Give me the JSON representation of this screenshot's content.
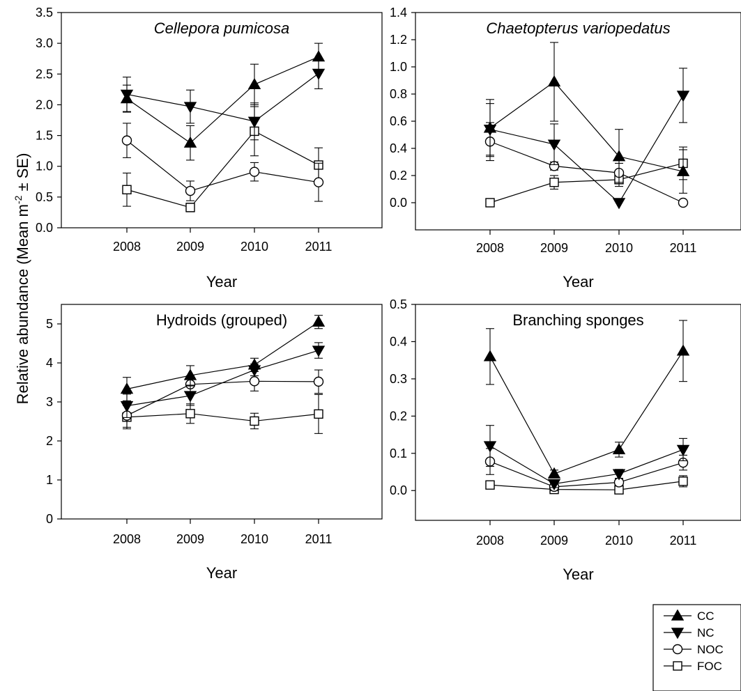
{
  "figure": {
    "shared_ylabel": "Relative abundance (Mean m",
    "shared_ylabel_sup": "-2",
    "shared_ylabel_tail": " ± SE)"
  },
  "legend": {
    "entries": [
      {
        "name": "CC",
        "marker": "triangle-up",
        "fill": "#000000"
      },
      {
        "name": "NC",
        "marker": "triangle-down",
        "fill": "#000000"
      },
      {
        "name": "NOC",
        "marker": "circle",
        "fill": "#ffffff"
      },
      {
        "name": "FOC",
        "marker": "square",
        "fill": "#ffffff"
      }
    ]
  },
  "chart_data": [
    {
      "type": "line",
      "title": "Cellepora pumicosa",
      "title_italic": true,
      "xlabel": "Year",
      "ylabel": "",
      "categories": [
        "2008",
        "2009",
        "2010",
        "2011"
      ],
      "ylim": [
        0,
        3.5
      ],
      "yticks": [
        "0.0",
        "0.5",
        "1.0",
        "1.5",
        "2.0",
        "2.5",
        "3.0",
        "3.5"
      ],
      "grid": false,
      "series": [
        {
          "name": "CC",
          "values": [
            2.1,
            1.38,
            2.33,
            2.78
          ],
          "se": [
            0.22,
            0.28,
            0.33,
            0.22
          ]
        },
        {
          "name": "NC",
          "values": [
            2.17,
            1.97,
            1.73,
            2.51
          ],
          "se": [
            0.28,
            0.27,
            0.3,
            0.25
          ]
        },
        {
          "name": "NOC",
          "values": [
            1.42,
            0.6,
            0.91,
            0.74
          ],
          "se": [
            0.28,
            0.16,
            0.15,
            0.31
          ]
        },
        {
          "name": "FOC",
          "values": [
            0.62,
            0.33,
            1.57,
            1.02
          ],
          "se": [
            0.27,
            0.07,
            0.4,
            0.28
          ]
        }
      ]
    },
    {
      "type": "line",
      "title": "Chaetopterus variopedatus",
      "title_italic": true,
      "xlabel": "Year",
      "ylabel": "",
      "categories": [
        "2008",
        "2009",
        "2010",
        "2011"
      ],
      "ylim": [
        -0.2,
        1.4
      ],
      "yticks": [
        "0.0",
        "0.2",
        "0.4",
        "0.6",
        "0.8",
        "1.0",
        "1.2",
        "1.4"
      ],
      "grid": false,
      "series": [
        {
          "name": "CC",
          "values": [
            0.55,
            0.89,
            0.34,
            0.23
          ],
          "se": [
            0.21,
            0.29,
            0.2,
            0.16
          ]
        },
        {
          "name": "NC",
          "values": [
            0.54,
            0.43,
            0.0,
            0.79
          ],
          "se": [
            0.19,
            0.15,
            0.0,
            0.2
          ]
        },
        {
          "name": "NOC",
          "values": [
            0.45,
            0.27,
            0.22,
            0.0
          ],
          "se": [
            0.14,
            0.03,
            0.07,
            0.0
          ]
        },
        {
          "name": "FOC",
          "values": [
            0.0,
            0.15,
            0.17,
            0.29
          ],
          "se": [
            0.0,
            0.05,
            0.05,
            0.12
          ]
        }
      ]
    },
    {
      "type": "line",
      "title": "Hydroids (grouped)",
      "title_italic": false,
      "xlabel": "Year",
      "ylabel": "",
      "categories": [
        "2008",
        "2009",
        "2010",
        "2011"
      ],
      "ylim": [
        0,
        5.5
      ],
      "yticks": [
        "0",
        "1",
        "2",
        "3",
        "4",
        "5"
      ],
      "grid": false,
      "series": [
        {
          "name": "CC",
          "values": [
            3.33,
            3.68,
            3.95,
            5.05
          ],
          "se": [
            0.3,
            0.25,
            0.17,
            0.17
          ]
        },
        {
          "name": "NC",
          "values": [
            2.9,
            3.16,
            3.82,
            4.32
          ],
          "se": [
            0.3,
            0.25,
            0.15,
            0.2
          ]
        },
        {
          "name": "NOC",
          "values": [
            2.65,
            3.45,
            3.53,
            3.52
          ],
          "se": [
            0.3,
            0.22,
            0.25,
            0.3
          ]
        },
        {
          "name": "FOC",
          "values": [
            2.61,
            2.7,
            2.51,
            2.69
          ],
          "se": [
            0.3,
            0.25,
            0.2,
            0.5
          ]
        }
      ]
    },
    {
      "type": "line",
      "title": "Branching sponges",
      "title_italic": false,
      "xlabel": "Year",
      "ylabel": "",
      "categories": [
        "2008",
        "2009",
        "2010",
        "2011"
      ],
      "ylim": [
        -0.08,
        0.5
      ],
      "yticks": [
        "0.0",
        "0.1",
        "0.2",
        "0.3",
        "0.4",
        "0.5"
      ],
      "grid": false,
      "series": [
        {
          "name": "CC",
          "values": [
            0.36,
            0.045,
            0.11,
            0.375
          ],
          "se": [
            0.075,
            0.01,
            0.02,
            0.082
          ]
        },
        {
          "name": "NC",
          "values": [
            0.12,
            0.018,
            0.045,
            0.11
          ],
          "se": [
            0.055,
            0.01,
            0.012,
            0.03
          ]
        },
        {
          "name": "NOC",
          "values": [
            0.078,
            0.01,
            0.022,
            0.075
          ],
          "se": [
            0.035,
            0.01,
            0.01,
            0.02
          ]
        },
        {
          "name": "FOC",
          "values": [
            0.015,
            0.003,
            0.002,
            0.025
          ],
          "se": [
            0.0,
            0.003,
            0.003,
            0.015
          ]
        }
      ]
    }
  ]
}
